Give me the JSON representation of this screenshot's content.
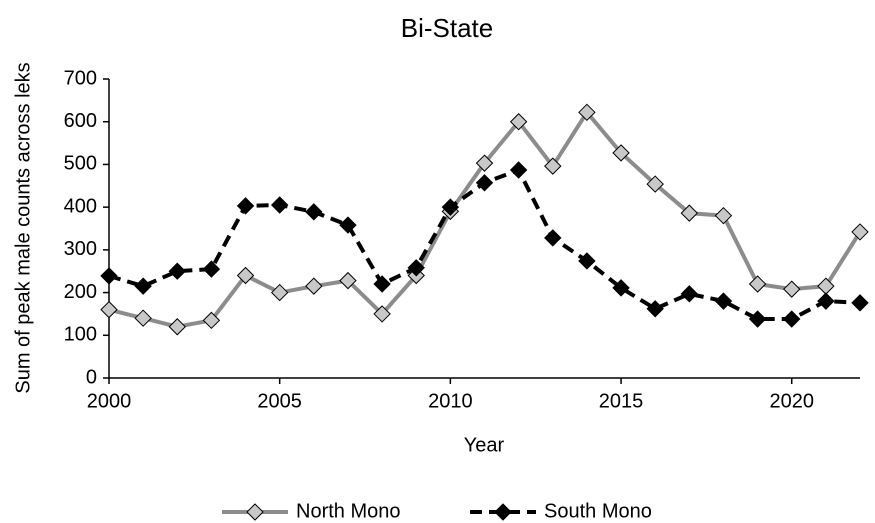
{
  "chart_data": {
    "type": "line",
    "title": "Bi-State",
    "x_label": "Year",
    "y_label": "Sum of peak male counts across leks",
    "x": [
      2000,
      2001,
      2002,
      2003,
      2004,
      2005,
      2006,
      2007,
      2008,
      2009,
      2010,
      2011,
      2012,
      2013,
      2014,
      2015,
      2016,
      2017,
      2018,
      2019,
      2020,
      2021,
      2022
    ],
    "series": [
      {
        "name": "North Mono",
        "color": "#8c8c8c",
        "marker_fill": "#c8c8c8",
        "line_style": "solid",
        "values": [
          160,
          140,
          120,
          135,
          240,
          200,
          215,
          228,
          150,
          240,
          390,
          503,
          600,
          496,
          622,
          527,
          454,
          386,
          380,
          220,
          208,
          215,
          342
        ]
      },
      {
        "name": "South Mono",
        "color": "#000000",
        "marker_fill": "#000000",
        "line_style": "dashed",
        "values": [
          239,
          215,
          250,
          255,
          403,
          405,
          389,
          358,
          220,
          258,
          400,
          457,
          487,
          328,
          274,
          211,
          162,
          197,
          180,
          138,
          138,
          180,
          176
        ]
      }
    ],
    "xlim": [
      2000,
      2022
    ],
    "xticks": [
      2000,
      2005,
      2010,
      2015,
      2020
    ],
    "ylim": [
      0,
      700
    ],
    "yticks": [
      0,
      100,
      200,
      300,
      400,
      500,
      600,
      700
    ],
    "grid": false,
    "legend": "bottom"
  }
}
